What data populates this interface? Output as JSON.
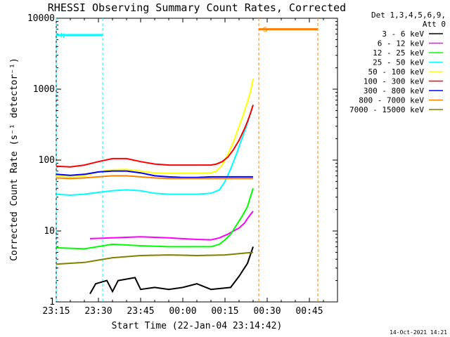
{
  "chart_data": {
    "type": "line",
    "title": "RHESSI Observing Summary Count Rates, Corrected",
    "xlabel": "Start Time (22-Jan-04 23:14:42)",
    "ylabel": "Corrected Count Rate (s⁻¹ detector⁻¹)",
    "y_scale": "log",
    "ylim": [
      1,
      10000
    ],
    "xlim_minutes": [
      0,
      100
    ],
    "x_tick_minutes": [
      0,
      15,
      30,
      45,
      60,
      75,
      90
    ],
    "x_tick_labels": [
      "23:15",
      "23:30",
      "23:45",
      "00:00",
      "00:15",
      "00:30",
      "00:45"
    ],
    "y_tick_values": [
      1,
      10,
      100,
      1000,
      10000
    ],
    "y_tick_labels": [
      "1",
      "10",
      "100",
      "1000",
      "10000"
    ],
    "legend_header": [
      "Det 1,3,4,5,6,9,",
      "Att 0"
    ],
    "legend_position": "right",
    "grid": false,
    "series": [
      {
        "name": "3 - 6 keV",
        "color": "#000000",
        "x": [
          12,
          14,
          18,
          20,
          22,
          28,
          30,
          35,
          40,
          45,
          50,
          55,
          62,
          65,
          68,
          70
        ],
        "y": [
          1.3,
          1.8,
          2.0,
          1.4,
          2.0,
          2.2,
          1.5,
          1.6,
          1.5,
          1.6,
          1.8,
          1.5,
          1.6,
          2.3,
          3.5,
          6.0
        ]
      },
      {
        "name": "6 - 12 keV",
        "color": "#ff00ff",
        "x": [
          12,
          20,
          30,
          40,
          50,
          55,
          58,
          61,
          63,
          65,
          67,
          68,
          69,
          70
        ],
        "y": [
          7.8,
          8.0,
          8.3,
          8.0,
          7.6,
          7.5,
          8.0,
          9.0,
          10.0,
          11.0,
          13.0,
          15.0,
          17.0,
          19.0
        ]
      },
      {
        "name": "12 - 25 keV",
        "color": "#00ff00",
        "x": [
          0,
          10,
          20,
          30,
          40,
          50,
          55,
          58,
          60,
          62,
          64,
          66,
          68,
          69,
          70
        ],
        "y": [
          5.8,
          5.6,
          6.5,
          6.2,
          6.0,
          6.0,
          6.0,
          6.5,
          7.5,
          9.0,
          12.0,
          16.0,
          22.0,
          30.0,
          40.0
        ]
      },
      {
        "name": "25 - 50 keV",
        "color": "#00ffff",
        "x": [
          0,
          5,
          10,
          15,
          20,
          25,
          30,
          35,
          40,
          45,
          50,
          55,
          58,
          60,
          62,
          64,
          66,
          68,
          69,
          70
        ],
        "y": [
          33,
          32,
          33,
          35,
          37,
          38,
          37,
          34,
          33,
          33,
          33,
          34,
          38,
          50,
          75,
          120,
          200,
          330,
          450,
          600
        ]
      },
      {
        "name": "50 - 100 keV",
        "color": "#ffff00",
        "x": [
          0,
          5,
          10,
          15,
          20,
          25,
          30,
          35,
          40,
          45,
          50,
          55,
          57,
          59,
          61,
          63,
          65,
          67,
          69,
          70
        ],
        "y": [
          60,
          58,
          60,
          68,
          73,
          74,
          70,
          66,
          65,
          65,
          65,
          66,
          70,
          85,
          120,
          180,
          300,
          500,
          900,
          1400
        ]
      },
      {
        "name": "100 - 300 keV",
        "color": "#ff0000",
        "x": [
          0,
          5,
          10,
          15,
          20,
          25,
          30,
          35,
          40,
          45,
          50,
          55,
          57,
          59,
          61,
          63,
          65,
          67,
          68,
          69,
          70
        ],
        "y": [
          82,
          80,
          85,
          95,
          105,
          105,
          95,
          88,
          85,
          85,
          85,
          85,
          88,
          95,
          110,
          140,
          190,
          280,
          350,
          450,
          600
        ]
      },
      {
        "name": "300 - 800 keV",
        "color": "#0000ff",
        "x": [
          0,
          5,
          10,
          15,
          20,
          25,
          30,
          35,
          40,
          45,
          50,
          55,
          60,
          65,
          70
        ],
        "y": [
          63,
          61,
          63,
          68,
          70,
          70,
          66,
          60,
          58,
          57,
          57,
          58,
          58,
          58,
          58
        ]
      },
      {
        "name": "800 - 7000 keV",
        "color": "#ff8000",
        "x": [
          0,
          5,
          10,
          15,
          20,
          25,
          30,
          35,
          40,
          45,
          50,
          55,
          60,
          65,
          70
        ],
        "y": [
          56,
          55,
          56,
          58,
          60,
          60,
          58,
          56,
          55,
          55,
          55,
          55,
          55,
          55,
          55
        ]
      },
      {
        "name": "7000 - 15000 keV",
        "color": "#808000",
        "x": [
          0,
          10,
          20,
          30,
          40,
          50,
          60,
          65,
          70
        ],
        "y": [
          3.4,
          3.6,
          4.2,
          4.5,
          4.6,
          4.5,
          4.6,
          4.8,
          5.0
        ]
      }
    ],
    "annotations": [
      {
        "label": "N",
        "color": "#00ffff",
        "x_start": 0,
        "x_end": 16.5,
        "y": 5800
      },
      {
        "label": "S",
        "color": "#ff8000",
        "x_start": 72,
        "x_end": 93,
        "y": 7000
      }
    ],
    "footer": "14-Oct-2021 14:21"
  }
}
